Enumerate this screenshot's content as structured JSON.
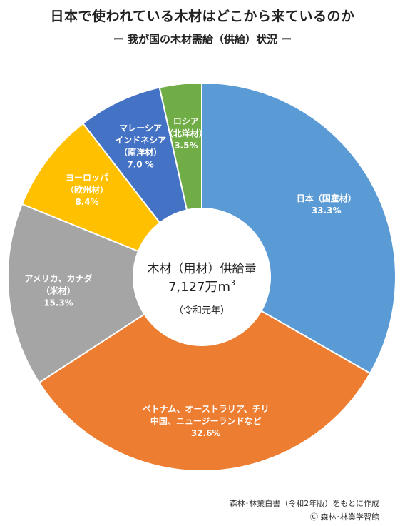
{
  "title": "日本で使われている木材はどこから来ているのか",
  "subtitle": "ー 我が国の木材需給（供給）状況 ー",
  "center": {
    "line1": "木材（用材）供給量",
    "line2": "7,127万m",
    "line2_sup": "3",
    "line3": "（令和元年）"
  },
  "footer": {
    "source": "森林･林業白書（令和2年版）をもとに作成",
    "copyright": "Ⓒ 森林･林業学習館"
  },
  "chart_data": {
    "type": "pie",
    "title": "日本で使われている木材はどこから来ているのか",
    "subtitle": "ー 我が国の木材需給（供給）状況 ー",
    "unit": "%",
    "slices": [
      {
        "lines": [
          "日本（国産材）"
        ],
        "value_label": "33.3%",
        "value": 33.3,
        "color": "#5b9bd5"
      },
      {
        "lines": [
          "ベトナム、オーストラリア、チリ",
          "中国、ニュージーランドなど"
        ],
        "value_label": "32.6%",
        "value": 32.6,
        "color": "#ed7d31"
      },
      {
        "lines": [
          "アメリカ、カナダ",
          "（米材）"
        ],
        "value_label": "15.3%",
        "value": 15.3,
        "color": "#a5a5a5"
      },
      {
        "lines": [
          "ヨーロッパ",
          "（欧州材）"
        ],
        "value_label": "8.4%",
        "value": 8.4,
        "color": "#ffc000"
      },
      {
        "lines": [
          "マレーシア",
          "インドネシア",
          "（南洋材）"
        ],
        "value_label": "7.0 %",
        "value": 7.0,
        "color": "#4472c4"
      },
      {
        "lines": [
          "ロシア",
          "（北洋材）"
        ],
        "value_label": "3.5%",
        "value": 3.5,
        "color": "#70ad47"
      }
    ]
  }
}
